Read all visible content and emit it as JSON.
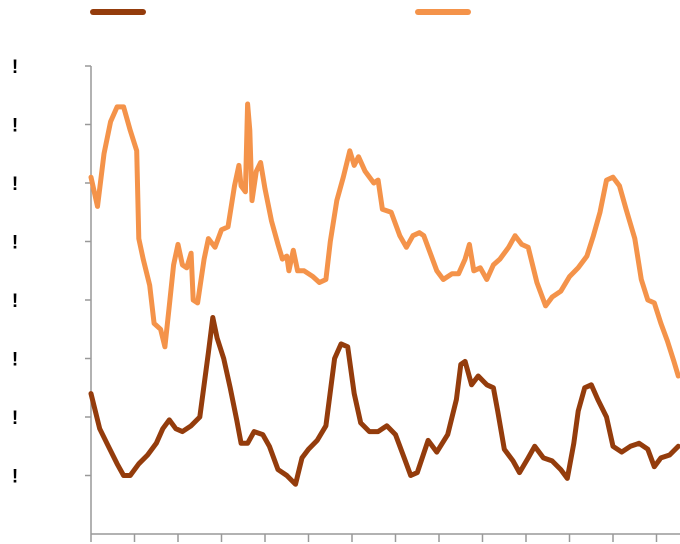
{
  "chart_data": {
    "type": "line",
    "title": "",
    "xlabel": "",
    "ylabel": "",
    "legend": {
      "placement": "top"
    },
    "grid": false,
    "ylim": [
      0,
      8
    ],
    "xlim": [
      0,
      14
    ],
    "y_ticks": [
      1,
      2,
      3,
      4,
      5,
      6,
      7,
      8
    ],
    "y_tick_labels": [
      "!",
      "!",
      "!",
      "!",
      "!",
      "!",
      "!",
      "!"
    ],
    "x_tick_count": 14,
    "series": [
      {
        "color": "#943c0c",
        "points": [
          [
            0.0,
            2.4
          ],
          [
            0.2,
            1.8
          ],
          [
            0.4,
            1.5
          ],
          [
            0.6,
            1.2
          ],
          [
            0.75,
            1.0
          ],
          [
            0.9,
            1.0
          ],
          [
            1.1,
            1.2
          ],
          [
            1.3,
            1.35
          ],
          [
            1.5,
            1.55
          ],
          [
            1.65,
            1.8
          ],
          [
            1.8,
            1.95
          ],
          [
            1.95,
            1.8
          ],
          [
            2.1,
            1.75
          ],
          [
            2.3,
            1.85
          ],
          [
            2.5,
            2.0
          ],
          [
            2.7,
            3.1
          ],
          [
            2.8,
            3.7
          ],
          [
            2.9,
            3.35
          ],
          [
            3.05,
            3.0
          ],
          [
            3.2,
            2.5
          ],
          [
            3.35,
            1.95
          ],
          [
            3.45,
            1.55
          ],
          [
            3.6,
            1.55
          ],
          [
            3.75,
            1.75
          ],
          [
            3.95,
            1.7
          ],
          [
            4.1,
            1.5
          ],
          [
            4.3,
            1.1
          ],
          [
            4.5,
            1.0
          ],
          [
            4.7,
            0.85
          ],
          [
            4.85,
            1.3
          ],
          [
            5.0,
            1.45
          ],
          [
            5.2,
            1.6
          ],
          [
            5.4,
            1.85
          ],
          [
            5.6,
            3.0
          ],
          [
            5.75,
            3.25
          ],
          [
            5.9,
            3.2
          ],
          [
            6.05,
            2.4
          ],
          [
            6.2,
            1.9
          ],
          [
            6.4,
            1.75
          ],
          [
            6.6,
            1.75
          ],
          [
            6.8,
            1.85
          ],
          [
            7.0,
            1.7
          ],
          [
            7.2,
            1.3
          ],
          [
            7.35,
            1.0
          ],
          [
            7.5,
            1.05
          ],
          [
            7.75,
            1.6
          ],
          [
            7.95,
            1.4
          ],
          [
            8.2,
            1.7
          ],
          [
            8.4,
            2.3
          ],
          [
            8.5,
            2.9
          ],
          [
            8.6,
            2.95
          ],
          [
            8.75,
            2.55
          ],
          [
            8.9,
            2.7
          ],
          [
            9.1,
            2.55
          ],
          [
            9.25,
            2.5
          ],
          [
            9.35,
            2.1
          ],
          [
            9.5,
            1.45
          ],
          [
            9.7,
            1.25
          ],
          [
            9.85,
            1.05
          ],
          [
            10.05,
            1.3
          ],
          [
            10.2,
            1.5
          ],
          [
            10.4,
            1.3
          ],
          [
            10.6,
            1.25
          ],
          [
            10.8,
            1.1
          ],
          [
            10.95,
            0.95
          ],
          [
            11.1,
            1.55
          ],
          [
            11.2,
            2.1
          ],
          [
            11.35,
            2.5
          ],
          [
            11.5,
            2.55
          ],
          [
            11.65,
            2.3
          ],
          [
            11.85,
            2.0
          ],
          [
            12.0,
            1.5
          ],
          [
            12.2,
            1.4
          ],
          [
            12.4,
            1.5
          ],
          [
            12.6,
            1.55
          ],
          [
            12.8,
            1.45
          ],
          [
            12.95,
            1.15
          ],
          [
            13.1,
            1.3
          ],
          [
            13.3,
            1.35
          ],
          [
            13.5,
            1.5
          ]
        ]
      },
      {
        "color": "#f4934a",
        "points": [
          [
            0.0,
            6.1
          ],
          [
            0.15,
            5.6
          ],
          [
            0.3,
            6.5
          ],
          [
            0.45,
            7.05
          ],
          [
            0.6,
            7.3
          ],
          [
            0.75,
            7.3
          ],
          [
            0.9,
            6.9
          ],
          [
            1.05,
            6.55
          ],
          [
            1.1,
            5.05
          ],
          [
            1.2,
            4.7
          ],
          [
            1.35,
            4.25
          ],
          [
            1.45,
            3.6
          ],
          [
            1.6,
            3.5
          ],
          [
            1.7,
            3.2
          ],
          [
            1.8,
            3.9
          ],
          [
            1.9,
            4.6
          ],
          [
            2.0,
            4.95
          ],
          [
            2.1,
            4.6
          ],
          [
            2.2,
            4.55
          ],
          [
            2.3,
            4.8
          ],
          [
            2.35,
            4.0
          ],
          [
            2.45,
            3.95
          ],
          [
            2.6,
            4.7
          ],
          [
            2.7,
            5.05
          ],
          [
            2.85,
            4.9
          ],
          [
            3.0,
            5.2
          ],
          [
            3.15,
            5.25
          ],
          [
            3.3,
            5.95
          ],
          [
            3.4,
            6.3
          ],
          [
            3.45,
            5.95
          ],
          [
            3.55,
            5.85
          ],
          [
            3.6,
            7.35
          ],
          [
            3.65,
            6.9
          ],
          [
            3.7,
            5.7
          ],
          [
            3.8,
            6.2
          ],
          [
            3.9,
            6.35
          ],
          [
            4.0,
            5.9
          ],
          [
            4.15,
            5.35
          ],
          [
            4.3,
            4.95
          ],
          [
            4.4,
            4.7
          ],
          [
            4.5,
            4.75
          ],
          [
            4.55,
            4.5
          ],
          [
            4.65,
            4.85
          ],
          [
            4.75,
            4.5
          ],
          [
            4.9,
            4.5
          ],
          [
            5.1,
            4.4
          ],
          [
            5.25,
            4.3
          ],
          [
            5.4,
            4.35
          ],
          [
            5.5,
            5.0
          ],
          [
            5.65,
            5.7
          ],
          [
            5.8,
            6.1
          ],
          [
            5.95,
            6.55
          ],
          [
            6.05,
            6.3
          ],
          [
            6.15,
            6.45
          ],
          [
            6.3,
            6.2
          ],
          [
            6.5,
            6.0
          ],
          [
            6.6,
            6.05
          ],
          [
            6.7,
            5.55
          ],
          [
            6.9,
            5.5
          ],
          [
            7.1,
            5.1
          ],
          [
            7.25,
            4.9
          ],
          [
            7.4,
            5.1
          ],
          [
            7.55,
            5.15
          ],
          [
            7.65,
            5.1
          ],
          [
            7.8,
            4.8
          ],
          [
            7.95,
            4.5
          ],
          [
            8.1,
            4.35
          ],
          [
            8.3,
            4.45
          ],
          [
            8.45,
            4.45
          ],
          [
            8.6,
            4.7
          ],
          [
            8.7,
            4.95
          ],
          [
            8.8,
            4.5
          ],
          [
            8.95,
            4.55
          ],
          [
            9.1,
            4.35
          ],
          [
            9.25,
            4.6
          ],
          [
            9.4,
            4.7
          ],
          [
            9.6,
            4.9
          ],
          [
            9.75,
            5.1
          ],
          [
            9.9,
            4.95
          ],
          [
            10.05,
            4.9
          ],
          [
            10.25,
            4.3
          ],
          [
            10.45,
            3.9
          ],
          [
            10.6,
            4.05
          ],
          [
            10.8,
            4.15
          ],
          [
            11.0,
            4.4
          ],
          [
            11.2,
            4.55
          ],
          [
            11.4,
            4.75
          ],
          [
            11.55,
            5.1
          ],
          [
            11.7,
            5.5
          ],
          [
            11.85,
            6.05
          ],
          [
            12.0,
            6.1
          ],
          [
            12.15,
            5.95
          ],
          [
            12.3,
            5.55
          ],
          [
            12.5,
            5.05
          ],
          [
            12.65,
            4.35
          ],
          [
            12.8,
            4.0
          ],
          [
            12.95,
            3.95
          ],
          [
            13.1,
            3.6
          ],
          [
            13.25,
            3.3
          ],
          [
            13.4,
            2.95
          ],
          [
            13.5,
            2.7
          ]
        ]
      }
    ]
  }
}
